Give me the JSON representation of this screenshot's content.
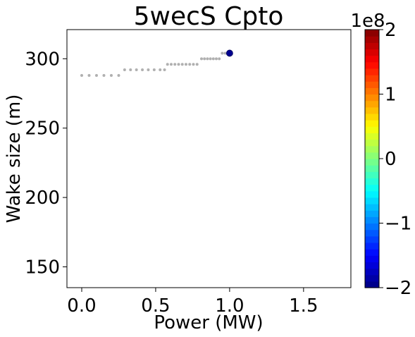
{
  "chart_data": {
    "type": "scatter",
    "title": "5wecS Cpto",
    "xlabel": "Power (MW)",
    "ylabel": "Wake size (m)",
    "xlim": [
      -0.1,
      1.82
    ],
    "ylim": [
      135,
      321
    ],
    "xticks": [
      0.0,
      0.5,
      1.0,
      1.5
    ],
    "xtick_labels": [
      "0.0",
      "0.5",
      "1.0",
      "1.5"
    ],
    "yticks": [
      150,
      200,
      250,
      300
    ],
    "ytick_labels": [
      "150",
      "200",
      "250",
      "300"
    ],
    "grid": false,
    "series": [
      {
        "marker": "small-dot",
        "color": "#b0b0b0",
        "points": [
          [
            0.0,
            288
          ],
          [
            0.05,
            288
          ],
          [
            0.1,
            288
          ],
          [
            0.15,
            288
          ],
          [
            0.2,
            288
          ],
          [
            0.25,
            288
          ],
          [
            0.29,
            292
          ],
          [
            0.33,
            292
          ],
          [
            0.37,
            292
          ],
          [
            0.41,
            292
          ],
          [
            0.45,
            292
          ],
          [
            0.49,
            292
          ],
          [
            0.53,
            292
          ],
          [
            0.56,
            292
          ],
          [
            0.58,
            296
          ],
          [
            0.605,
            296
          ],
          [
            0.63,
            296
          ],
          [
            0.655,
            296
          ],
          [
            0.68,
            296
          ],
          [
            0.705,
            296
          ],
          [
            0.73,
            296
          ],
          [
            0.755,
            296
          ],
          [
            0.78,
            296
          ],
          [
            0.81,
            300
          ],
          [
            0.83,
            300
          ],
          [
            0.85,
            300
          ],
          [
            0.87,
            300
          ],
          [
            0.89,
            300
          ],
          [
            0.91,
            300
          ],
          [
            0.93,
            300
          ],
          [
            0.95,
            304
          ],
          [
            0.97,
            304
          ]
        ]
      },
      {
        "marker": "large-dot",
        "color": "#00008f",
        "points": [
          [
            1.0,
            304
          ]
        ]
      }
    ],
    "colorbar": {
      "min": -2,
      "max": 2,
      "ticks": [
        -2,
        -1,
        0,
        1,
        2
      ],
      "tick_labels": [
        "−2",
        "−1",
        "0",
        "1",
        "2"
      ],
      "offset_label": "1e8",
      "colormap": "jet",
      "levels": 40
    }
  }
}
